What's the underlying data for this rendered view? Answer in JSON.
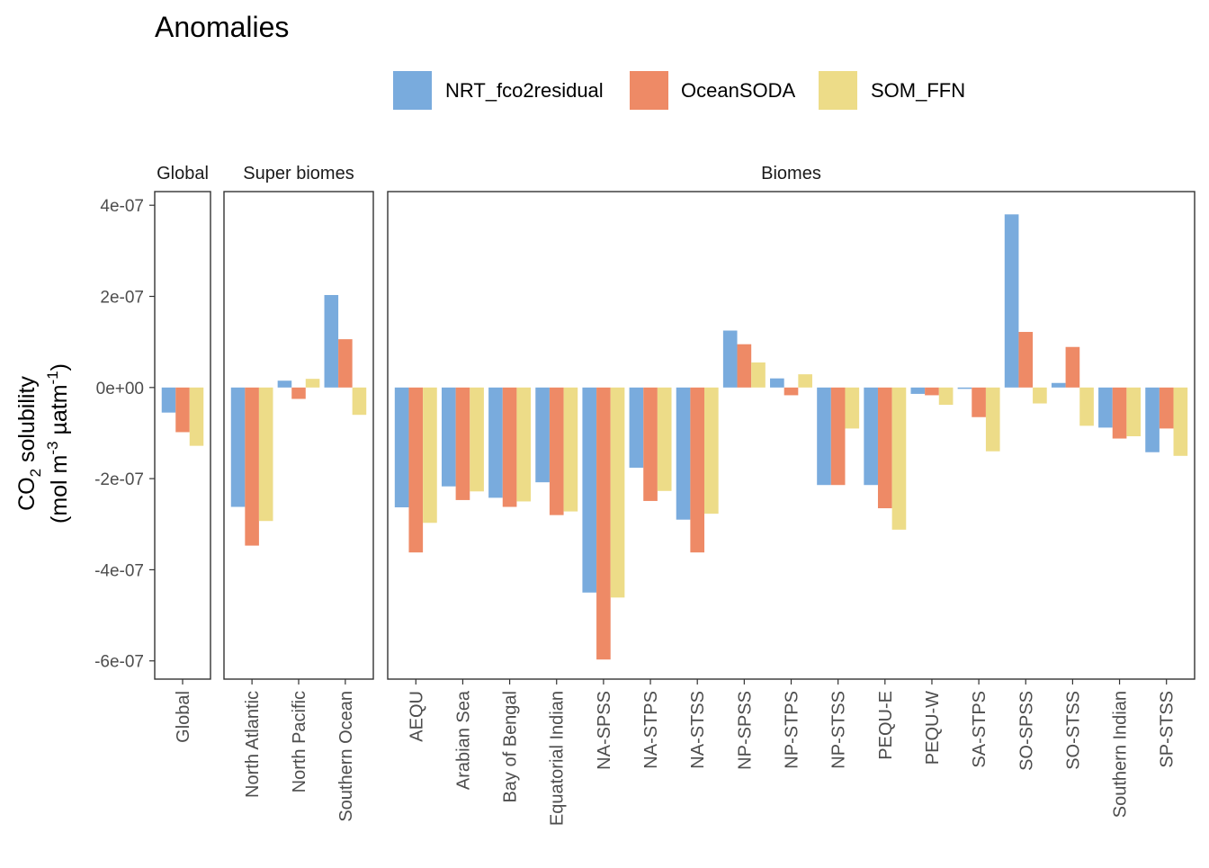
{
  "title": "Anomalies",
  "colors": {
    "NRT_fco2residual": "#79ABDD",
    "OceanSODA": "#EE8A66",
    "SOM_FFN": "#EDDC88",
    "panel_border": "#333333",
    "tick_text": "#4d4d4d"
  },
  "chart_data": {
    "type": "bar",
    "title": "Anomalies",
    "ylabel_line1_main": "CO",
    "ylabel_line1_sub": "2",
    "ylabel_line1_rest": " solubility",
    "ylabel_line2_prefix": "(mol m",
    "ylabel_line2_sup1": "-3",
    "ylabel_line2_middle": " µatm",
    "ylabel_line2_sup2": "-1",
    "ylabel_line2_suffix": ")",
    "ylim": [
      -6.4e-07,
      4.3e-07
    ],
    "yticks": [
      4e-07,
      2e-07,
      0,
      -2e-07,
      -4e-07,
      -6e-07
    ],
    "ytick_labels": [
      "4e-07",
      "2e-07",
      "0e+00",
      "-2e-07",
      "-4e-07",
      "-6e-07"
    ],
    "legend_position": "top",
    "grid": false,
    "series_names": [
      "NRT_fco2residual",
      "OceanSODA",
      "SOM_FFN"
    ],
    "panels": [
      {
        "strip": "Global",
        "categories": [
          "Global"
        ],
        "series": [
          {
            "name": "NRT_fco2residual",
            "values": [
              -5.5e-08
            ]
          },
          {
            "name": "OceanSODA",
            "values": [
              -9.8e-08
            ]
          },
          {
            "name": "SOM_FFN",
            "values": [
              -1.28e-07
            ]
          }
        ]
      },
      {
        "strip": "Super biomes",
        "categories": [
          "North Atlantic",
          "North Pacific",
          "Southern Ocean"
        ],
        "series": [
          {
            "name": "NRT_fco2residual",
            "values": [
              -2.62e-07,
              1.5e-08,
              2.03e-07
            ]
          },
          {
            "name": "OceanSODA",
            "values": [
              -3.47e-07,
              -2.5e-08,
              1.06e-07
            ]
          },
          {
            "name": "SOM_FFN",
            "values": [
              -2.93e-07,
              1.9e-08,
              -6e-08
            ]
          }
        ]
      },
      {
        "strip": "Biomes",
        "categories": [
          "AEQU",
          "Arabian Sea",
          "Bay of Bengal",
          "Equatorial Indian",
          "NA-SPSS",
          "NA-STPS",
          "NA-STSS",
          "NP-SPSS",
          "NP-STPS",
          "NP-STSS",
          "PEQU-E",
          "PEQU-W",
          "SA-STPS",
          "SO-SPSS",
          "SO-STSS",
          "Southern Indian",
          "SP-STSS"
        ],
        "series": [
          {
            "name": "NRT_fco2residual",
            "values": [
              -2.63e-07,
              -2.17e-07,
              -2.42e-07,
              -2.08e-07,
              -4.5e-07,
              -1.76e-07,
              -2.9e-07,
              1.25e-07,
              2e-08,
              -2.14e-07,
              -2.14e-07,
              -1.4e-08,
              -3e-09,
              3.8e-07,
              1e-08,
              -8.8e-08,
              -1.42e-07
            ]
          },
          {
            "name": "OceanSODA",
            "values": [
              -3.62e-07,
              -2.47e-07,
              -2.62e-07,
              -2.8e-07,
              -5.97e-07,
              -2.49e-07,
              -3.62e-07,
              9.5e-08,
              -1.7e-08,
              -2.14e-07,
              -2.65e-07,
              -1.7e-08,
              -6.5e-08,
              1.22e-07,
              8.9e-08,
              -1.12e-07,
              -9e-08
            ]
          },
          {
            "name": "SOM_FFN",
            "values": [
              -2.97e-07,
              -2.28e-07,
              -2.5e-07,
              -2.72e-07,
              -4.61e-07,
              -2.27e-07,
              -2.77e-07,
              5.5e-08,
              2.9e-08,
              -9e-08,
              -3.12e-07,
              -3.8e-08,
              -1.4e-07,
              -3.5e-08,
              -8.4e-08,
              -1.07e-07,
              -1.5e-07
            ]
          }
        ]
      }
    ]
  }
}
